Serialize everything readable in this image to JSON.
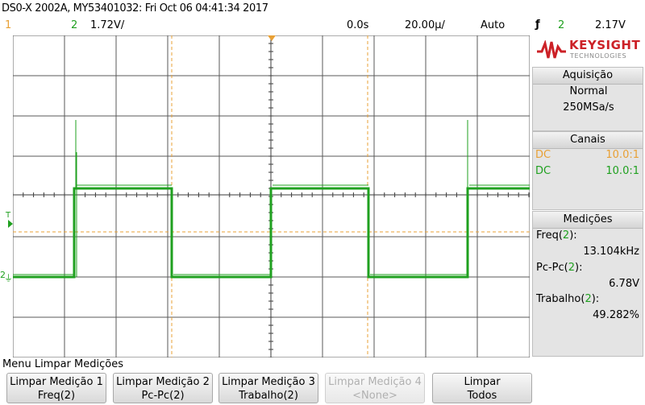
{
  "header": {
    "model_info": "DS0-X 2002A, MY53401032: Fri Oct 06 04:41:34 2017",
    "ch1_label": "1",
    "ch2_label": "2",
    "ch2_scale": "1.72V/",
    "time_delay": "0.0s",
    "time_scale": "20.00µ/",
    "trigger_mode": "Auto",
    "trigger_slope_symbol": "ƒ",
    "trigger_source": "2",
    "trigger_level": "2.17V"
  },
  "brand": {
    "logo_name": "KEYSIGHT",
    "logo_sub": "TECHNOLOGIES",
    "color": "#cc2127"
  },
  "acquisition": {
    "title": "Aquisição",
    "mode": "Normal",
    "rate": "250MSa/s"
  },
  "channels": {
    "title": "Canais",
    "items": [
      {
        "coupling": "DC",
        "probe": "10.0:1",
        "color": "#e8a035"
      },
      {
        "coupling": "DC",
        "probe": "10.0:1",
        "color": "#1fa01f"
      }
    ]
  },
  "measurements": {
    "title": "Medições",
    "items": [
      {
        "name": "Freq(",
        "ch": "2",
        "close": "):",
        "value": "13.104kHz"
      },
      {
        "name": "Pc-Pc(",
        "ch": "2",
        "close": "):",
        "value": "6.78V"
      },
      {
        "name": "Trabalho(",
        "ch": "2",
        "close": "):",
        "value": "49.282%"
      }
    ]
  },
  "menu": {
    "title": "Menu Limpar Medições",
    "softkeys": [
      {
        "line1": "Limpar Medição 1",
        "line2": "Freq(2)",
        "enabled": true
      },
      {
        "line1": "Limpar Medição 2",
        "line2": "Pc-Pc(2)",
        "enabled": true
      },
      {
        "line1": "Limpar Medição 3",
        "line2": "Trabalho(2)",
        "enabled": true
      },
      {
        "line1": "Limpar Medição 4",
        "line2": "<None>",
        "enabled": false
      },
      {
        "line1": "Limpar",
        "line2": "Todos",
        "enabled": true
      }
    ]
  },
  "display": {
    "trigger_marker": "T",
    "ch2_ground_marker": "2",
    "grid_color": "#5a5a5a",
    "trace_color": "#1fa01f",
    "cursor_color": "#e8a035"
  }
}
